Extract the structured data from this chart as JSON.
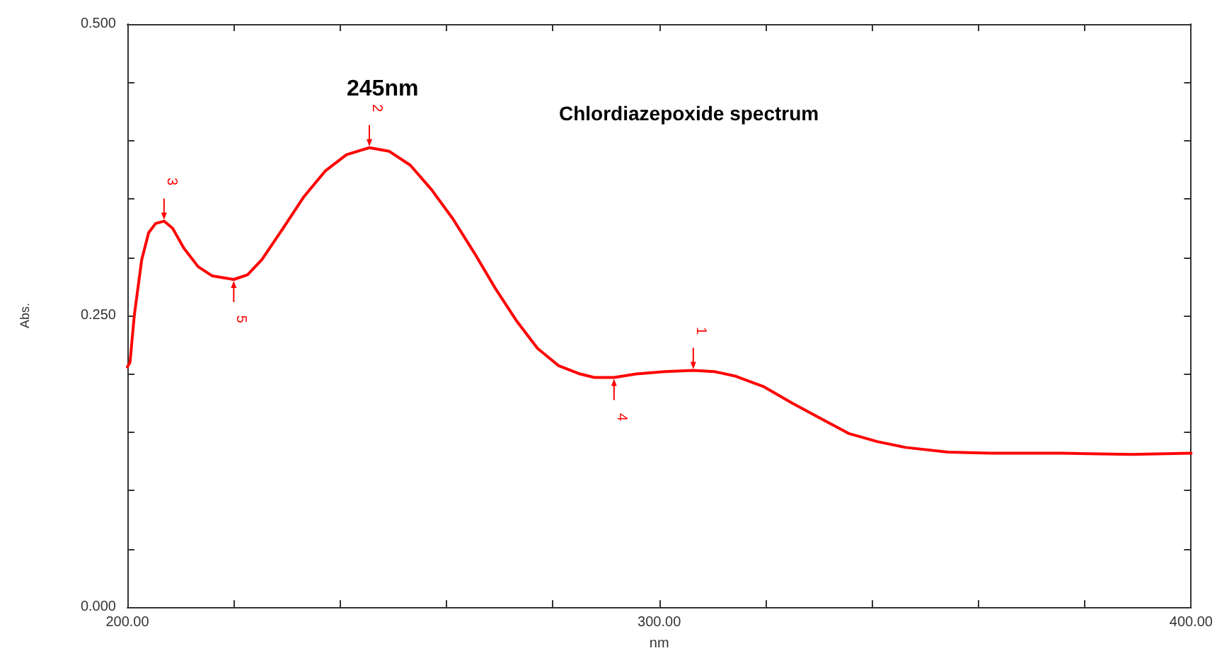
{
  "chart_data": {
    "type": "line",
    "title": "Chlordiazepoxide spectrum",
    "xlabel": "nm",
    "ylabel": "Abs.",
    "x": [
      200,
      200.5,
      201.3,
      202.7,
      204,
      205.3,
      206.9,
      208.5,
      210.6,
      213.3,
      216,
      220,
      222.6,
      225.3,
      229.3,
      233.2,
      237.2,
      241.2,
      245.5,
      249.2,
      253.2,
      257.2,
      261.2,
      265.2,
      269.1,
      273.1,
      277.1,
      281.1,
      285.1,
      287.8,
      291.5,
      295.7,
      301,
      306.4,
      310.4,
      314.4,
      319.7,
      325,
      330.3,
      335.6,
      341,
      346.3,
      354.3,
      362.2,
      375.5,
      388.8,
      400
    ],
    "series": [
      {
        "color": "#ff0000",
        "values": [
          0.206,
          0.21,
          0.25,
          0.298,
          0.321,
          0.329,
          0.331,
          0.325,
          0.308,
          0.292,
          0.284,
          0.281,
          0.285,
          0.298,
          0.325,
          0.352,
          0.374,
          0.388,
          0.394,
          0.391,
          0.379,
          0.358,
          0.333,
          0.304,
          0.274,
          0.246,
          0.222,
          0.207,
          0.2,
          0.197,
          0.197,
          0.2,
          0.202,
          0.203,
          0.202,
          0.198,
          0.189,
          0.175,
          0.162,
          0.149,
          0.142,
          0.137,
          0.133,
          0.132,
          0.132,
          0.131,
          0.132
        ]
      }
    ],
    "xlim": [
      200,
      400
    ],
    "xticks": [
      {
        "value": 200,
        "label": "200.00"
      },
      {
        "value": 220,
        "label": null
      },
      {
        "value": 240,
        "label": null
      },
      {
        "value": 260,
        "label": null
      },
      {
        "value": 280,
        "label": null
      },
      {
        "value": 300,
        "label": "300.00"
      },
      {
        "value": 320,
        "label": null
      },
      {
        "value": 340,
        "label": null
      },
      {
        "value": 360,
        "label": null
      },
      {
        "value": 380,
        "label": null
      },
      {
        "value": 400,
        "label": "400.00"
      }
    ],
    "ylim": [
      0,
      0.5
    ],
    "yticks": [
      {
        "value": 0,
        "label": "0.000"
      },
      {
        "value": 0.05,
        "label": null
      },
      {
        "value": 0.1,
        "label": null
      },
      {
        "value": 0.15,
        "label": null
      },
      {
        "value": 0.2,
        "label": null
      },
      {
        "value": 0.25,
        "label": "0.250"
      },
      {
        "value": 0.3,
        "label": null
      },
      {
        "value": 0.35,
        "label": null
      },
      {
        "value": 0.4,
        "label": null
      },
      {
        "value": 0.45,
        "label": null
      },
      {
        "value": 0.5,
        "label": "0.500"
      }
    ],
    "annotations": [
      "245nm",
      {
        "text": "3",
        "x": 206.9,
        "y": 0.331
      },
      {
        "text": "5",
        "x": 220,
        "y": 0.281
      },
      {
        "text": "2",
        "x": 245.5,
        "y": 0.394
      },
      {
        "text": "4",
        "x": 291.5,
        "y": 0.197
      },
      {
        "text": "1",
        "x": 306.4,
        "y": 0.203
      }
    ],
    "grid": false,
    "marker": "none",
    "line_style": "solid"
  }
}
